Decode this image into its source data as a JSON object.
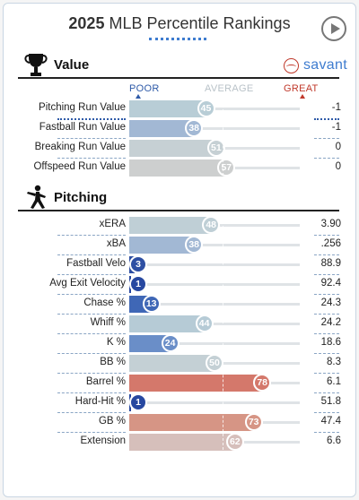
{
  "header": {
    "year": "2025",
    "title": "MLB Percentile Rankings"
  },
  "savant": {
    "label": "savant",
    "icon": "baseball-icon"
  },
  "scale": {
    "poor": "POOR",
    "average": "AVERAGE",
    "great": "GREAT"
  },
  "sections": [
    {
      "title": "Value",
      "icon": "trophy-icon",
      "rows": [
        {
          "label": "Pitching Run Value",
          "percentile": 45,
          "value": "-1",
          "color": "#b8cdd6"
        },
        {
          "label": "Fastball Run Value",
          "percentile": 38,
          "value": "-1",
          "color": "#a2b8d4"
        },
        {
          "label": "Breaking Run Value",
          "percentile": 51,
          "value": "0",
          "color": "#c6d0d4"
        },
        {
          "label": "Offspeed Run Value",
          "percentile": 57,
          "value": "0",
          "color": "#cdcfcf"
        }
      ]
    },
    {
      "title": "Pitching",
      "icon": "pitcher-icon",
      "rows": [
        {
          "label": "xERA",
          "percentile": 48,
          "value": "3.90",
          "color": "#bfcfd6"
        },
        {
          "label": "xBA",
          "percentile": 38,
          "value": ".256",
          "color": "#a2b8d4"
        },
        {
          "label": "Fastball Velo",
          "percentile": 3,
          "value": "88.9",
          "color": "#2e4fa3"
        },
        {
          "label": "Avg Exit Velocity",
          "percentile": 1,
          "value": "92.4",
          "color": "#2748a0"
        },
        {
          "label": "Chase %",
          "percentile": 13,
          "value": "24.3",
          "color": "#3f67b6"
        },
        {
          "label": "Whiff %",
          "percentile": 44,
          "value": "24.2",
          "color": "#b6cbd6"
        },
        {
          "label": "K %",
          "percentile": 24,
          "value": "18.6",
          "color": "#6a8ec8"
        },
        {
          "label": "BB %",
          "percentile": 50,
          "value": "8.3",
          "color": "#c4d0d5"
        },
        {
          "label": "Barrel %",
          "percentile": 78,
          "value": "6.1",
          "color": "#d4786b"
        },
        {
          "label": "Hard-Hit %",
          "percentile": 1,
          "value": "51.8",
          "color": "#2748a0"
        },
        {
          "label": "GB %",
          "percentile": 73,
          "value": "47.4",
          "color": "#d69585"
        },
        {
          "label": "Extension",
          "percentile": 62,
          "value": "6.6",
          "color": "#d6bfbb"
        }
      ]
    }
  ]
}
